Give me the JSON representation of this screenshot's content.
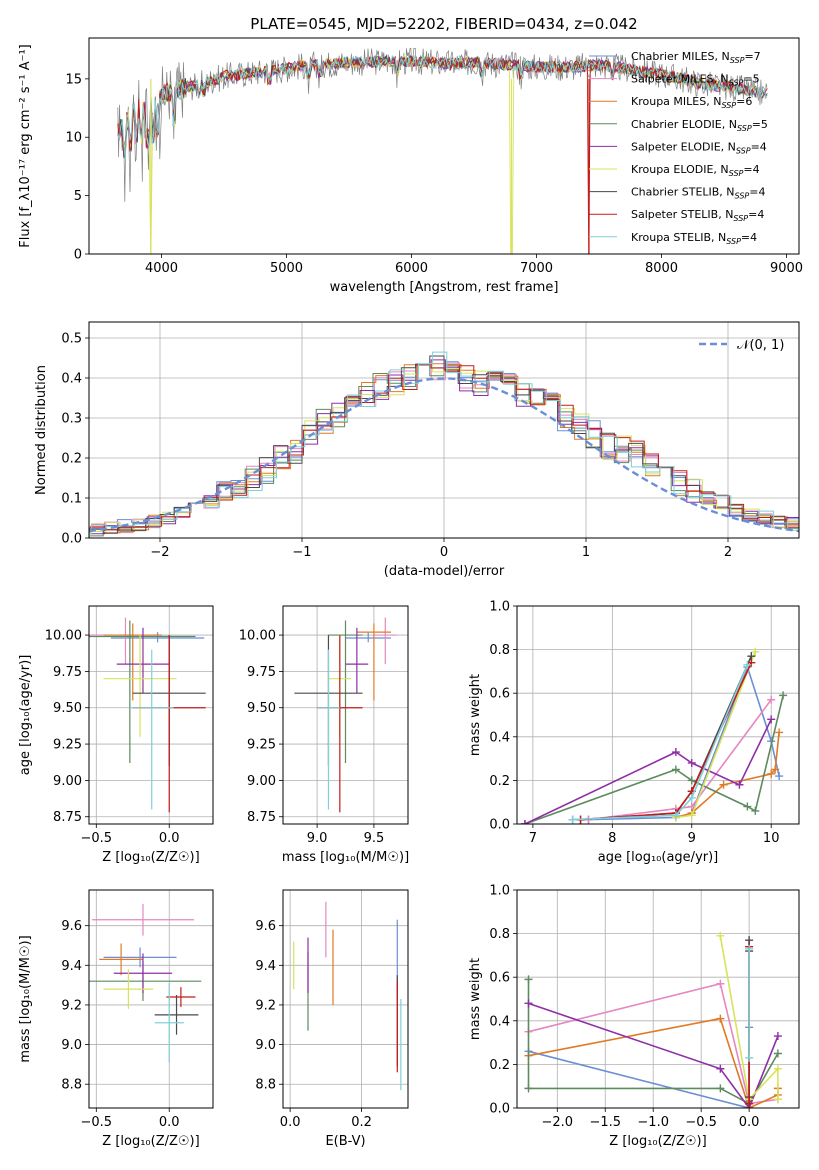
{
  "figure": {
    "title": "PLATE=0545, MJD=52202, FIBERID=0434, z=0.042"
  },
  "colors": {
    "Chabrier MILES": "#6a8fd6",
    "Salpeter MILES": "#e587c0",
    "Kroupa MILES": "#e07a26",
    "Chabrier ELODIE": "#5e8a5e",
    "Salpeter ELODIE": "#8f2fa6",
    "Kroupa ELODIE": "#d8e35c",
    "Chabrier STELIB": "#4a4a4a",
    "Salpeter STELIB": "#c41a1a",
    "Kroupa STELIB": "#7fd0d8"
  },
  "chart_data": [
    {
      "id": "spectrum",
      "type": "line",
      "xlabel": "wavelength [Angstrom, rest frame]",
      "ylabel": "Flux [f_λ10⁻¹⁷ erg cm⁻² s⁻¹ A⁻¹]",
      "xlim": [
        3420,
        9100
      ],
      "ylim": [
        0,
        18.5
      ],
      "xticks": [
        4000,
        5000,
        6000,
        7000,
        8000,
        9000
      ],
      "xtick_labels": [
        "4000",
        "5000",
        "6000",
        "7000",
        "8000",
        "9000"
      ],
      "yticks": [
        0,
        5,
        10,
        15
      ],
      "ytick_labels": [
        "0",
        "5",
        "10",
        "15"
      ],
      "grid": false,
      "legend_position": "right",
      "legend": [
        {
          "name": "Chabrier MILES",
          "label": "Chabrier MILES, N",
          "sub": "SSP",
          "n": "=7"
        },
        {
          "name": "Salpeter MILES",
          "label": "Salpeter MILES, N",
          "sub": "SSP",
          "n": "=5"
        },
        {
          "name": "Kroupa MILES",
          "label": "Kroupa MILES, N",
          "sub": "SSP",
          "n": "=6"
        },
        {
          "name": "Chabrier ELODIE",
          "label": "Chabrier ELODIE, N",
          "sub": "SSP",
          "n": "=5"
        },
        {
          "name": "Salpeter ELODIE",
          "label": "Salpeter ELODIE, N",
          "sub": "SSP",
          "n": "=4"
        },
        {
          "name": "Kroupa ELODIE",
          "label": "Kroupa ELODIE, N",
          "sub": "SSP",
          "n": "=4"
        },
        {
          "name": "Chabrier STELIB",
          "label": "Chabrier STELIB, N",
          "sub": "SSP",
          "n": "=4"
        },
        {
          "name": "Salpeter STELIB",
          "label": "Salpeter STELIB, N",
          "sub": "SSP",
          "n": "=4"
        },
        {
          "name": "Kroupa STELIB",
          "label": "Kroupa STELIB, N",
          "sub": "SSP",
          "n": "=4"
        }
      ],
      "data_envelope": {
        "wavelength": [
          3650,
          3700,
          3800,
          3900,
          4000,
          4100,
          4300,
          4500,
          4800,
          5000,
          5200,
          5500,
          5800,
          6000,
          6300,
          6500,
          6800,
          7000,
          7300,
          7500,
          7700,
          8000,
          8300,
          8600,
          8800
        ],
        "flux": [
          10.5,
          11.0,
          12.5,
          12.0,
          13.5,
          14.0,
          14.5,
          15.2,
          15.6,
          15.9,
          16.2,
          16.4,
          16.5,
          16.5,
          16.3,
          16.4,
          16.2,
          16.0,
          16.0,
          16.2,
          15.9,
          15.4,
          14.6,
          14.2,
          13.8
        ]
      },
      "drop_outs": [
        {
          "series": "Kroupa ELODIE",
          "wavelength": 3915
        },
        {
          "series": "Kroupa ELODIE",
          "wavelength": 6800
        },
        {
          "series": "Salpeter STELIB",
          "wavelength": 7420
        }
      ]
    },
    {
      "id": "residuals",
      "type": "histogram",
      "xlabel": "(data-model)/error",
      "ylabel": "Normed distribution",
      "xlim": [
        -2.5,
        2.5
      ],
      "ylim": [
        0,
        0.54
      ],
      "xticks": [
        -2,
        -1,
        0,
        1,
        2
      ],
      "xtick_labels": [
        "−2",
        "−1",
        "0",
        "1",
        "2"
      ],
      "yticks": [
        0,
        0.1,
        0.2,
        0.3,
        0.4,
        0.5
      ],
      "ytick_labels": [
        "0.0",
        "0.1",
        "0.2",
        "0.3",
        "0.4",
        "0.5"
      ],
      "grid": true,
      "legend_label": "𝒩(0, 1)",
      "legend_position": "top-right",
      "normal_curve": {
        "mu": 0,
        "sigma": 1
      },
      "bin_edges_start": -2.5,
      "bin_width": 0.1,
      "base_values": [
        0.02,
        0.025,
        0.03,
        0.035,
        0.04,
        0.05,
        0.06,
        0.07,
        0.09,
        0.11,
        0.13,
        0.15,
        0.17,
        0.2,
        0.22,
        0.26,
        0.29,
        0.31,
        0.33,
        0.36,
        0.38,
        0.39,
        0.4,
        0.45,
        0.43,
        0.42,
        0.4,
        0.39,
        0.4,
        0.38,
        0.36,
        0.35,
        0.33,
        0.3,
        0.28,
        0.26,
        0.23,
        0.22,
        0.21,
        0.18,
        0.15,
        0.14,
        0.12,
        0.1,
        0.09,
        0.07,
        0.06,
        0.05,
        0.04,
        0.035
      ]
    },
    {
      "id": "age-vs-Z",
      "type": "scatter",
      "xlabel": "Z [log₁₀(Z/Z☉)]",
      "ylabel": "age  [log₁₀(age/yr)]",
      "xlim": [
        -0.55,
        0.3
      ],
      "ylim": [
        8.7,
        10.2
      ],
      "xticks": [
        -0.5,
        0.0
      ],
      "xtick_labels": [
        "−0.5",
        "0.0"
      ],
      "yticks": [
        8.75,
        9.0,
        9.25,
        9.5,
        9.75,
        10.0
      ],
      "ytick_labels": [
        "8.75",
        "9.00",
        "9.25",
        "9.50",
        "9.75",
        "10.00"
      ],
      "grid": true,
      "points": [
        {
          "series": "Chabrier MILES",
          "x": -0.08,
          "y": 9.98,
          "xerr": 0.32,
          "yerr": 0.03
        },
        {
          "series": "Salpeter MILES",
          "x": -0.3,
          "y": 10.0,
          "xerr": 0.25,
          "yerr": 0.04
        },
        {
          "series": "Kroupa MILES",
          "x": -0.25,
          "y": 10.0,
          "xerr": 0.2,
          "yerr": 0.05
        },
        {
          "series": "Chabrier ELODIE",
          "x": -0.27,
          "y": 9.99,
          "xerr": 0.45,
          "yerr": 0.05
        },
        {
          "series": "Salpeter ELODIE",
          "x": -0.18,
          "y": 9.8,
          "xerr": 0.18,
          "yerr": 0.05
        },
        {
          "series": "Kroupa ELODIE",
          "x": -0.2,
          "y": 9.7,
          "xerr": 0.25,
          "yerr": 0.05
        },
        {
          "series": "Chabrier STELIB",
          "x": 0.0,
          "y": 9.6,
          "xerr": 0.25,
          "yerr": 0.05
        },
        {
          "series": "Salpeter STELIB",
          "x": 0.0,
          "y": 9.5,
          "xerr": 0.25,
          "yerr": 0.05
        },
        {
          "series": "Kroupa STELIB",
          "x": -0.12,
          "y": 9.5,
          "xerr": 0.15,
          "yerr": 0.05
        }
      ]
    },
    {
      "id": "age-vs-mass",
      "type": "scatter",
      "xlabel": "mass [log₁₀(M/M☉)]",
      "ylabel": "",
      "xlim": [
        8.7,
        9.8
      ],
      "ylim": [
        8.7,
        10.2
      ],
      "xticks": [
        9.0,
        9.5
      ],
      "xtick_labels": [
        "9.0",
        "9.5"
      ],
      "yticks": [
        8.75,
        9.0,
        9.25,
        9.5,
        9.75,
        10.0
      ],
      "ytick_labels": [
        "8.75",
        "9.00",
        "9.25",
        "9.50",
        "9.75",
        "10.00"
      ],
      "grid": true,
      "points": [
        {
          "series": "Chabrier MILES",
          "x": 9.45,
          "y": 9.98,
          "xerr": 0.2,
          "yerr": 0.05
        },
        {
          "series": "Salpeter MILES",
          "x": 9.6,
          "y": 10.0,
          "xerr": 0.1,
          "yerr": 0.1
        },
        {
          "series": "Kroupa MILES",
          "x": 9.5,
          "y": 10.02,
          "xerr": 0.15,
          "yerr": 0.05
        },
        {
          "series": "Chabrier ELODIE",
          "x": 9.25,
          "y": 10.0,
          "xerr": 0.15,
          "yerr": 0.05
        },
        {
          "series": "Salpeter ELODIE",
          "x": 9.35,
          "y": 9.8,
          "xerr": 0.1,
          "yerr": 0.05
        },
        {
          "series": "Kroupa ELODIE",
          "x": 9.2,
          "y": 9.7,
          "xerr": 0.1,
          "yerr": 0.05
        },
        {
          "series": "Chabrier STELIB",
          "x": 9.1,
          "y": 9.6,
          "xerr": 0.3,
          "yerr": 0.05
        },
        {
          "series": "Salpeter STELIB",
          "x": 9.2,
          "y": 9.5,
          "xerr": 0.2,
          "yerr": 0.05
        },
        {
          "series": "Kroupa STELIB",
          "x": 9.1,
          "y": 9.5,
          "xerr": 0.1,
          "yerr": 0.05
        }
      ]
    },
    {
      "id": "weight-vs-age",
      "type": "line",
      "xlabel": "age  [log₁₀(age/yr)]",
      "ylabel": "mass weight",
      "xlim": [
        6.8,
        10.35
      ],
      "ylim": [
        0,
        1
      ],
      "xticks": [
        7,
        8,
        9,
        10
      ],
      "xtick_labels": [
        "7",
        "8",
        "9",
        "10"
      ],
      "yticks": [
        0,
        0.2,
        0.4,
        0.6,
        0.8,
        1.0
      ],
      "ytick_labels": [
        "0.0",
        "0.2",
        "0.4",
        "0.6",
        "0.8",
        "1.0"
      ],
      "grid": true,
      "series": [
        {
          "name": "Chabrier MILES",
          "x": [
            7.5,
            7.7,
            8.8,
            9.0,
            9.7,
            10.0,
            10.1
          ],
          "y": [
            0.02,
            0.02,
            0.03,
            0.05,
            0.72,
            0.38,
            0.22
          ]
        },
        {
          "name": "Salpeter MILES",
          "x": [
            7.7,
            8.8,
            9.0,
            10.0
          ],
          "y": [
            0.02,
            0.07,
            0.08,
            0.57
          ]
        },
        {
          "name": "Kroupa MILES",
          "x": [
            8.8,
            9.0,
            9.4,
            10.0,
            10.05,
            10.1
          ],
          "y": [
            0.03,
            0.05,
            0.18,
            0.23,
            0.25,
            0.42
          ]
        },
        {
          "name": "Chabrier ELODIE",
          "x": [
            6.9,
            8.8,
            9.0,
            9.7,
            9.8,
            10.15
          ],
          "y": [
            0.0,
            0.25,
            0.2,
            0.08,
            0.06,
            0.59
          ]
        },
        {
          "name": "Salpeter ELODIE",
          "x": [
            6.9,
            8.8,
            9.0,
            9.6,
            10.0
          ],
          "y": [
            0.0,
            0.33,
            0.28,
            0.18,
            0.48
          ]
        },
        {
          "name": "Kroupa ELODIE",
          "x": [
            8.8,
            9.0,
            9.8
          ],
          "y": [
            0.03,
            0.04,
            0.79
          ]
        },
        {
          "name": "Chabrier STELIB",
          "x": [
            7.6,
            8.8,
            9.0,
            9.75
          ],
          "y": [
            0.02,
            0.05,
            0.15,
            0.77
          ]
        },
        {
          "name": "Salpeter STELIB",
          "x": [
            7.6,
            8.8,
            9.0,
            9.75
          ],
          "y": [
            0.02,
            0.05,
            0.15,
            0.74
          ]
        },
        {
          "name": "Kroupa STELIB",
          "x": [
            7.5,
            8.8,
            9.0,
            9.7
          ],
          "y": [
            0.02,
            0.04,
            0.12,
            0.73
          ]
        }
      ]
    },
    {
      "id": "mass-vs-Z",
      "type": "scatter",
      "xlabel": "Z [log₁₀(Z/Z☉)]",
      "ylabel": "mass [log₁₀(M/M☉)]",
      "xlim": [
        -0.55,
        0.3
      ],
      "ylim": [
        8.68,
        9.78
      ],
      "xticks": [
        -0.5,
        0.0
      ],
      "xtick_labels": [
        "−0.5",
        "0.0"
      ],
      "yticks": [
        8.8,
        9.0,
        9.2,
        9.4,
        9.6
      ],
      "ytick_labels": [
        "8.8",
        "9.0",
        "9.2",
        "9.4",
        "9.6"
      ],
      "grid": true,
      "points": [
        {
          "series": "Chabrier MILES",
          "x": -0.2,
          "y": 9.44,
          "xerr": 0.25,
          "yerr": 0.05
        },
        {
          "series": "Salpeter MILES",
          "x": -0.18,
          "y": 9.63,
          "xerr": 0.35,
          "yerr": 0.08
        },
        {
          "series": "Kroupa MILES",
          "x": -0.33,
          "y": 9.43,
          "xerr": 0.15,
          "yerr": 0.08
        },
        {
          "series": "Chabrier ELODIE",
          "x": -0.18,
          "y": 9.32,
          "xerr": 0.4,
          "yerr": 0.1
        },
        {
          "series": "Salpeter ELODIE",
          "x": -0.18,
          "y": 9.36,
          "xerr": 0.2,
          "yerr": 0.1
        },
        {
          "series": "Kroupa ELODIE",
          "x": -0.28,
          "y": 9.28,
          "xerr": 0.17,
          "yerr": 0.1
        },
        {
          "series": "Chabrier STELIB",
          "x": 0.05,
          "y": 9.15,
          "xerr": 0.15,
          "yerr": 0.1
        },
        {
          "series": "Salpeter STELIB",
          "x": 0.08,
          "y": 9.24,
          "xerr": 0.1,
          "yerr": 0.05
        },
        {
          "series": "Kroupa STELIB",
          "x": 0.0,
          "y": 9.11,
          "xerr": 0.1,
          "yerr": 0.2
        }
      ]
    },
    {
      "id": "mass-vs-ebv",
      "type": "scatter",
      "xlabel": "E(B-V)",
      "ylabel": "",
      "xlim": [
        -0.02,
        0.33
      ],
      "ylim": [
        8.68,
        9.78
      ],
      "xticks": [
        0.0,
        0.2
      ],
      "xtick_labels": [
        "0.0",
        "0.2"
      ],
      "yticks": [
        8.8,
        9.0,
        9.2,
        9.4,
        9.6
      ],
      "ytick_labels": [
        "8.8",
        "9.0",
        "9.2",
        "9.4",
        "9.6"
      ],
      "grid": true,
      "points": [
        {
          "series": "Chabrier MILES",
          "x": 0.3,
          "y": 9.43,
          "yerr": 0.2
        },
        {
          "series": "Salpeter MILES",
          "x": 0.1,
          "y": 9.58,
          "yerr": 0.14
        },
        {
          "series": "Kroupa MILES",
          "x": 0.12,
          "y": 9.39,
          "yerr": 0.19
        },
        {
          "series": "Chabrier ELODIE",
          "x": 0.05,
          "y": 9.27,
          "yerr": 0.2
        },
        {
          "series": "Salpeter ELODIE",
          "x": 0.05,
          "y": 9.4,
          "yerr": 0.14
        },
        {
          "series": "Kroupa ELODIE",
          "x": 0.01,
          "y": 9.4,
          "yerr": 0.12
        },
        {
          "series": "Chabrier STELIB",
          "x": 0.3,
          "y": 9.12,
          "yerr": 0.23
        },
        {
          "series": "Salpeter STELIB",
          "x": 0.3,
          "y": 9.09,
          "yerr": 0.23
        },
        {
          "series": "Kroupa STELIB",
          "x": 0.31,
          "y": 9.0,
          "yerr": 0.23
        }
      ]
    },
    {
      "id": "weight-vs-Z",
      "type": "line",
      "xlabel": "Z [log₁₀(Z/Z☉)]",
      "ylabel": "mass weight",
      "xlim": [
        -2.42,
        0.52
      ],
      "ylim": [
        0,
        1
      ],
      "xticks": [
        -2.0,
        -1.5,
        -1.0,
        -0.5,
        0.0
      ],
      "xtick_labels": [
        "−2.0",
        "−1.5",
        "−1.0",
        "−0.5",
        "0.0"
      ],
      "yticks": [
        0,
        0.2,
        0.4,
        0.6,
        0.8,
        1.0
      ],
      "ytick_labels": [
        "0.0",
        "0.2",
        "0.4",
        "0.6",
        "0.8",
        "1.0"
      ],
      "grid": true,
      "series": [
        {
          "name": "Chabrier MILES",
          "x": [
            -2.3,
            0.0,
            0.0,
            0.0
          ],
          "y": [
            0.26,
            0.0,
            0.37,
            0.0
          ]
        },
        {
          "name": "Salpeter MILES",
          "x": [
            -2.3,
            -0.3,
            0.0,
            0.3
          ],
          "y": [
            0.35,
            0.57,
            0.02,
            0.04
          ]
        },
        {
          "name": "Kroupa MILES",
          "x": [
            -2.3,
            -0.3,
            0.0,
            0.3,
            0.3
          ],
          "y": [
            0.24,
            0.41,
            0.0,
            0.06,
            0.09
          ]
        },
        {
          "name": "Chabrier ELODIE",
          "x": [
            -2.3,
            -2.3,
            -0.3,
            0.0,
            0.3
          ],
          "y": [
            0.59,
            0.09,
            0.09,
            0.02,
            0.25
          ]
        },
        {
          "name": "Salpeter ELODIE",
          "x": [
            -2.3,
            -0.3,
            0.0,
            0.3
          ],
          "y": [
            0.48,
            0.18,
            0.0,
            0.33
          ]
        },
        {
          "name": "Kroupa ELODIE",
          "x": [
            -0.3,
            0.0,
            0.3,
            0.3
          ],
          "y": [
            0.79,
            0.04,
            0.18,
            0.04
          ]
        },
        {
          "name": "Chabrier STELIB",
          "x": [
            0.0,
            0.0,
            0.0
          ],
          "y": [
            0.77,
            0.72,
            0.05
          ]
        },
        {
          "name": "Salpeter STELIB",
          "x": [
            0.0,
            0.0
          ],
          "y": [
            0.74,
            0.02
          ]
        },
        {
          "name": "Kroupa STELIB",
          "x": [
            0.0,
            0.0
          ],
          "y": [
            0.73,
            0.23
          ]
        }
      ]
    }
  ]
}
